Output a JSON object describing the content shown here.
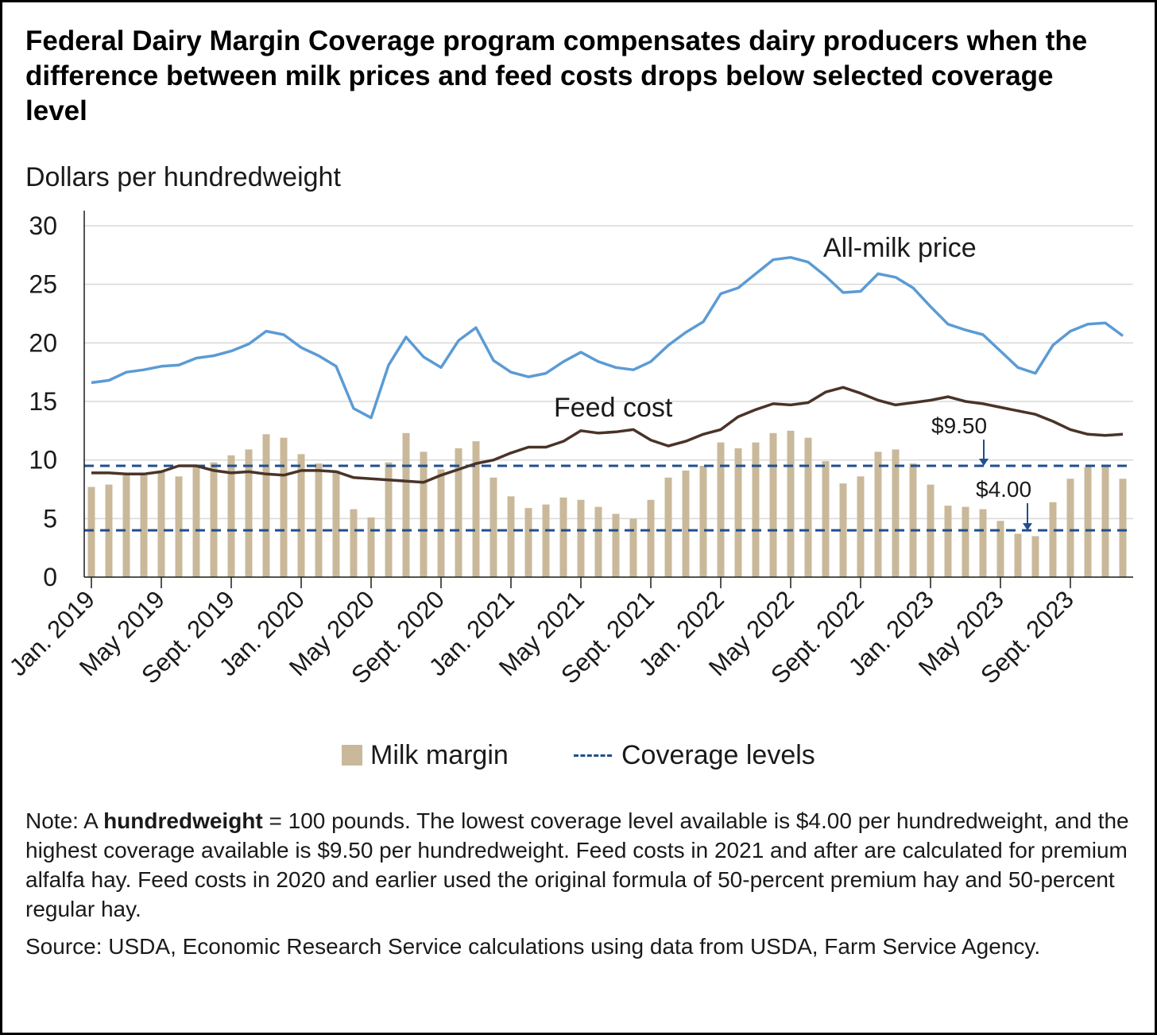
{
  "title": "Federal Dairy Margin Coverage program compensates dairy producers when the difference between milk prices and feed costs drops below selected coverage level",
  "ylabel": "Dollars per hundredweight",
  "note_prefix": "Note: A ",
  "note_bold": "hundredweight",
  "note_rest": " = 100 pounds. The lowest coverage level available is $4.00 per hundredweight, and the highest coverage available is $9.50 per hundredweight. Feed costs in 2021 and after are calculated for premium alfalfa hay. Feed costs in 2020 and earlier used the original formula of 50-percent premium hay and 50-percent regular hay.",
  "source": "Source: USDA, Economic Research Service calculations using data from USDA, Farm Service Agency.",
  "legend": {
    "margin_label": "Milk margin",
    "coverage_label": "Coverage levels"
  },
  "colors": {
    "milk_price": "#5b9bd5",
    "feed_cost": "#4a3328",
    "margin_bars": "#c9b99a",
    "coverage": "#1f4f8f",
    "grid": "#d9d9d9"
  },
  "chart_data": {
    "type": "bar",
    "ylim": [
      0,
      30
    ],
    "yticks": [
      0,
      5,
      10,
      15,
      20,
      25,
      30
    ],
    "grid": true,
    "legend_position": "bottom",
    "x_tick_labels": [
      {
        "label": "Jan. 2019",
        "index": 0
      },
      {
        "label": "May 2019",
        "index": 4
      },
      {
        "label": "Sept. 2019",
        "index": 8
      },
      {
        "label": "Jan. 2020",
        "index": 12
      },
      {
        "label": "May 2020",
        "index": 16
      },
      {
        "label": "Sept. 2020",
        "index": 20
      },
      {
        "label": "Jan. 2021",
        "index": 24
      },
      {
        "label": "May 2021",
        "index": 28
      },
      {
        "label": "Sept. 2021",
        "index": 32
      },
      {
        "label": "Jan. 2022",
        "index": 36
      },
      {
        "label": "May 2022",
        "index": 40
      },
      {
        "label": "Sept. 2022",
        "index": 44
      },
      {
        "label": "Jan. 2023",
        "index": 48
      },
      {
        "label": "May 2023",
        "index": 52
      },
      {
        "label": "Sept. 2023",
        "index": 56
      }
    ],
    "series": [
      {
        "name": "Milk margin",
        "kind": "bar",
        "values": [
          7.7,
          7.9,
          8.7,
          8.9,
          9.0,
          8.6,
          9.5,
          9.8,
          10.4,
          10.9,
          12.2,
          11.9,
          10.5,
          9.7,
          9.1,
          5.8,
          5.1,
          9.8,
          12.3,
          10.7,
          9.2,
          11.0,
          11.6,
          8.5,
          6.9,
          5.9,
          6.2,
          6.8,
          6.6,
          6.0,
          5.4,
          5.0,
          6.6,
          8.5,
          9.1,
          9.5,
          11.5,
          11.0,
          11.5,
          12.3,
          12.5,
          11.9,
          9.9,
          8.0,
          8.6,
          10.7,
          10.9,
          9.7,
          7.9,
          6.1,
          6.0,
          5.8,
          4.8,
          3.7,
          3.5,
          6.4,
          8.4,
          9.4,
          9.5,
          8.4
        ]
      },
      {
        "name": "All-milk price",
        "kind": "line",
        "values": [
          16.6,
          16.8,
          17.5,
          17.7,
          18.0,
          18.1,
          18.7,
          18.9,
          19.3,
          19.9,
          21.0,
          20.7,
          19.6,
          18.9,
          18.0,
          14.4,
          13.6,
          18.1,
          20.5,
          18.8,
          17.9,
          20.2,
          21.3,
          18.5,
          17.5,
          17.1,
          17.4,
          18.4,
          19.2,
          18.4,
          17.9,
          17.7,
          18.4,
          19.8,
          20.9,
          21.8,
          24.2,
          24.7,
          25.9,
          27.1,
          27.3,
          26.9,
          25.7,
          24.3,
          24.4,
          25.9,
          25.6,
          24.7,
          23.1,
          21.6,
          21.1,
          20.7,
          19.3,
          17.9,
          17.4,
          19.8,
          21.0,
          21.6,
          21.7,
          20.6
        ]
      },
      {
        "name": "Feed cost",
        "kind": "line",
        "values": [
          8.9,
          8.9,
          8.8,
          8.8,
          9.0,
          9.5,
          9.5,
          9.1,
          8.9,
          9.0,
          8.8,
          8.7,
          9.1,
          9.1,
          9.0,
          8.5,
          8.4,
          8.3,
          8.2,
          8.1,
          8.7,
          9.2,
          9.7,
          10.0,
          10.6,
          11.1,
          11.1,
          11.6,
          12.5,
          12.3,
          12.4,
          12.6,
          11.7,
          11.2,
          11.6,
          12.2,
          12.6,
          13.7,
          14.3,
          14.8,
          14.7,
          14.9,
          15.8,
          16.2,
          15.7,
          15.1,
          14.7,
          14.9,
          15.1,
          15.4,
          15.0,
          14.8,
          14.5,
          14.2,
          13.9,
          13.3,
          12.6,
          12.2,
          12.1,
          12.2
        ]
      }
    ],
    "coverage_levels": [
      9.5,
      4.0
    ],
    "annotations": [
      {
        "text": "All-milk price",
        "series": "All-milk price"
      },
      {
        "text": "Feed cost",
        "series": "Feed cost"
      },
      {
        "text": "$9.50",
        "value": 9.5
      },
      {
        "text": "$4.00",
        "value": 4.0
      }
    ]
  }
}
